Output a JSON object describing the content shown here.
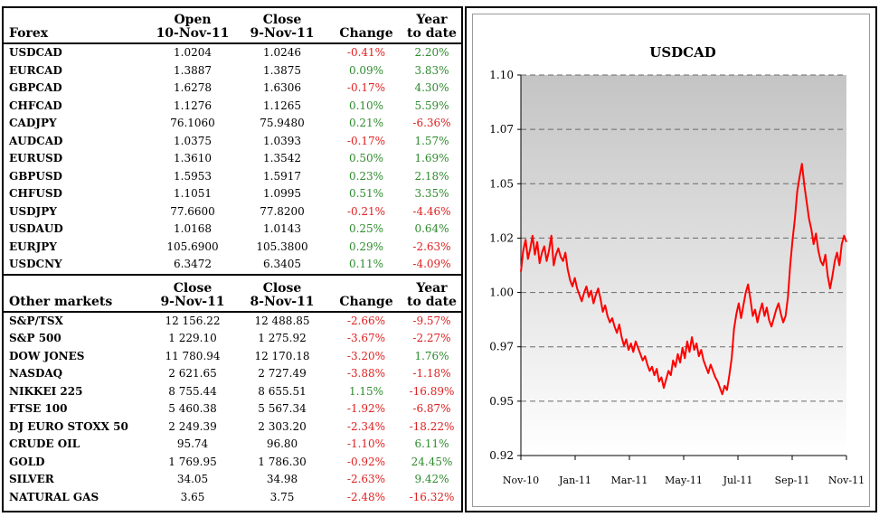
{
  "forex": {
    "headers": {
      "name": "Forex",
      "c1": [
        "Open",
        "10-Nov-11"
      ],
      "c2": [
        "Close",
        "9-Nov-11"
      ],
      "c3": "Change",
      "c4": [
        "Year",
        "to date"
      ]
    },
    "rows": [
      {
        "name": "USDCAD",
        "v1": "1.0204",
        "v2": "1.0246",
        "chg": "-0.41%",
        "ytd": "2.20%"
      },
      {
        "name": "EURCAD",
        "v1": "1.3887",
        "v2": "1.3875",
        "chg": "0.09%",
        "ytd": "3.83%"
      },
      {
        "name": "GBPCAD",
        "v1": "1.6278",
        "v2": "1.6306",
        "chg": "-0.17%",
        "ytd": "4.30%"
      },
      {
        "name": "CHFCAD",
        "v1": "1.1276",
        "v2": "1.1265",
        "chg": "0.10%",
        "ytd": "5.59%"
      },
      {
        "name": "CADJPY",
        "v1": "76.1060",
        "v2": "75.9480",
        "chg": "0.21%",
        "ytd": "-6.36%"
      },
      {
        "name": "AUDCAD",
        "v1": "1.0375",
        "v2": "1.0393",
        "chg": "-0.17%",
        "ytd": "1.57%"
      },
      {
        "name": "EURUSD",
        "v1": "1.3610",
        "v2": "1.3542",
        "chg": "0.50%",
        "ytd": "1.69%"
      },
      {
        "name": "GBPUSD",
        "v1": "1.5953",
        "v2": "1.5917",
        "chg": "0.23%",
        "ytd": "2.18%"
      },
      {
        "name": "CHFUSD",
        "v1": "1.1051",
        "v2": "1.0995",
        "chg": "0.51%",
        "ytd": "3.35%"
      },
      {
        "name": "USDJPY",
        "v1": "77.6600",
        "v2": "77.8200",
        "chg": "-0.21%",
        "ytd": "-4.46%"
      },
      {
        "name": "USDAUD",
        "v1": "1.0168",
        "v2": "1.0143",
        "chg": "0.25%",
        "ytd": "0.64%"
      },
      {
        "name": "EURJPY",
        "v1": "105.6900",
        "v2": "105.3800",
        "chg": "0.29%",
        "ytd": "-2.63%"
      },
      {
        "name": "USDCNY",
        "v1": "6.3472",
        "v2": "6.3405",
        "chg": "0.11%",
        "ytd": "-4.09%"
      }
    ]
  },
  "markets": {
    "headers": {
      "name": "Other markets",
      "c1": [
        "Close",
        "9-Nov-11"
      ],
      "c2": [
        "Close",
        "8-Nov-11"
      ],
      "c3": "Change",
      "c4": [
        "Year",
        "to date"
      ]
    },
    "rows": [
      {
        "name": "S&P/TSX",
        "v1": "12 156.22",
        "v2": "12 488.85",
        "chg": "-2.66%",
        "ytd": "-9.57%"
      },
      {
        "name": "S&P 500",
        "v1": "1 229.10",
        "v2": "1 275.92",
        "chg": "-3.67%",
        "ytd": "-2.27%"
      },
      {
        "name": "DOW JONES",
        "v1": "11 780.94",
        "v2": "12 170.18",
        "chg": "-3.20%",
        "ytd": "1.76%"
      },
      {
        "name": "NASDAQ",
        "v1": "2 621.65",
        "v2": "2 727.49",
        "chg": "-3.88%",
        "ytd": "-1.18%"
      },
      {
        "name": "NIKKEI 225",
        "v1": "8 755.44",
        "v2": "8 655.51",
        "chg": "1.15%",
        "ytd": "-16.89%"
      },
      {
        "name": "FTSE 100",
        "v1": "5 460.38",
        "v2": "5 567.34",
        "chg": "-1.92%",
        "ytd": "-6.87%"
      },
      {
        "name": "DJ EURO STOXX 50",
        "v1": "2 249.39",
        "v2": "2 303.20",
        "chg": "-2.34%",
        "ytd": "-18.22%"
      },
      {
        "name": "CRUDE OIL",
        "v1": "95.74",
        "v2": "96.80",
        "chg": "-1.10%",
        "ytd": "6.11%"
      },
      {
        "name": "GOLD",
        "v1": "1 769.95",
        "v2": "1 786.30",
        "chg": "-0.92%",
        "ytd": "24.45%"
      },
      {
        "name": "SILVER",
        "v1": "34.05",
        "v2": "34.98",
        "chg": "-2.63%",
        "ytd": "9.42%"
      },
      {
        "name": "NATURAL GAS",
        "v1": "3.65",
        "v2": "3.75",
        "chg": "-2.48%",
        "ytd": "-16.32%"
      }
    ]
  },
  "colors": {
    "positive": "#2e8b2e",
    "negative": "#e02020",
    "line": "#ff0000"
  },
  "chart_data": {
    "type": "line",
    "title": "USDCAD",
    "xlabel": "",
    "ylabel": "",
    "x_tick_labels": [
      "Nov-10",
      "Jan-11",
      "Mar-11",
      "May-11",
      "Jul-11",
      "Sep-11",
      "Nov-11"
    ],
    "y_tick_labels": [
      "0.92",
      "0.95",
      "0.97",
      "1.00",
      "1.02",
      "1.05",
      "1.07",
      "1.10"
    ],
    "ylim": [
      0.92,
      1.1
    ],
    "grid": "horizontal-dashed",
    "series": [
      {
        "values": [
          1.007,
          1.017,
          1.022,
          1.013,
          1.018,
          1.024,
          1.015,
          1.021,
          1.011,
          1.016,
          1.019,
          1.012,
          1.017,
          1.024,
          1.01,
          1.015,
          1.018,
          1.014,
          1.012,
          1.016,
          1.008,
          1.003,
          1.0,
          1.004,
          0.999,
          0.996,
          0.993,
          0.997,
          1.0,
          0.995,
          0.998,
          0.992,
          0.996,
          0.999,
          0.994,
          0.988,
          0.991,
          0.986,
          0.983,
          0.985,
          0.981,
          0.978,
          0.982,
          0.976,
          0.972,
          0.975,
          0.97,
          0.973,
          0.969,
          0.974,
          0.971,
          0.968,
          0.965,
          0.967,
          0.963,
          0.96,
          0.962,
          0.958,
          0.961,
          0.955,
          0.957,
          0.952,
          0.956,
          0.96,
          0.958,
          0.965,
          0.962,
          0.968,
          0.964,
          0.971,
          0.966,
          0.974,
          0.969,
          0.976,
          0.97,
          0.973,
          0.967,
          0.97,
          0.965,
          0.962,
          0.959,
          0.963,
          0.96,
          0.957,
          0.955,
          0.952,
          0.949,
          0.953,
          0.951,
          0.958,
          0.966,
          0.98,
          0.987,
          0.992,
          0.985,
          0.991,
          0.997,
          1.001,
          0.994,
          0.986,
          0.989,
          0.983,
          0.988,
          0.992,
          0.986,
          0.99,
          0.984,
          0.981,
          0.985,
          0.989,
          0.992,
          0.987,
          0.983,
          0.986,
          0.995,
          1.01,
          1.022,
          1.032,
          1.045,
          1.052,
          1.058,
          1.048,
          1.04,
          1.032,
          1.027,
          1.02,
          1.025,
          1.017,
          1.012,
          1.01,
          1.015,
          1.005,
          0.999,
          1.005,
          1.012,
          1.016,
          1.01,
          1.02,
          1.024,
          1.021
        ]
      }
    ]
  }
}
